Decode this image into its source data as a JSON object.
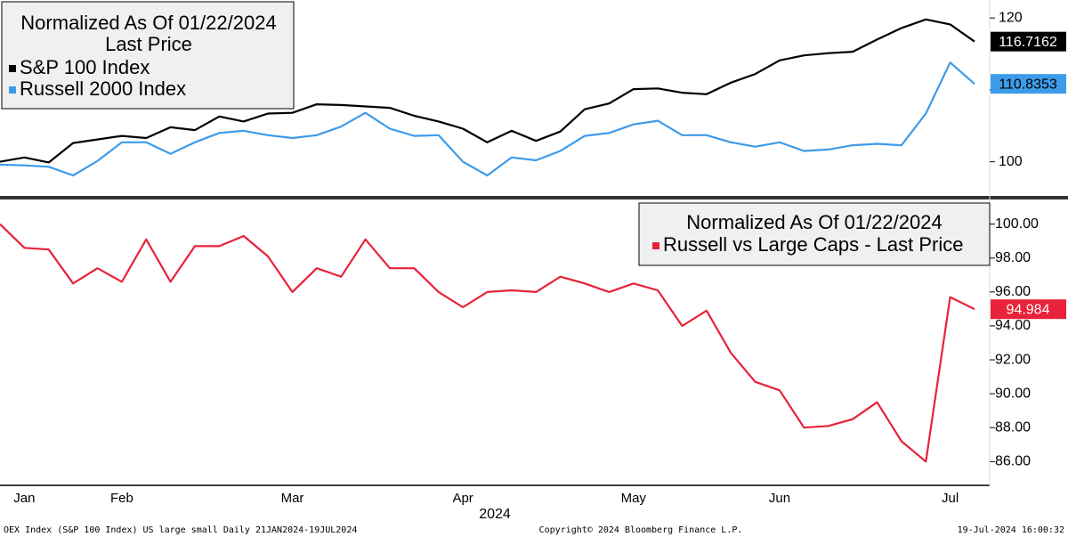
{
  "chart_data": [
    {
      "type": "line",
      "title": "Normalized As Of 01/22/2024",
      "subtitle": "Last Price",
      "ylim": [
        95,
        122.5
      ],
      "yticks": [
        100,
        110,
        120
      ],
      "grid": false,
      "legend": "upper left",
      "series": [
        {
          "name": "S&P 100 Index",
          "color": "#000000",
          "values": [
            100,
            100.6,
            99.9,
            102.6,
            103.1,
            103.6,
            103.3,
            104.8,
            104.4,
            106.3,
            105.6,
            106.7,
            106.8,
            108.0,
            107.9,
            107.7,
            107.5,
            106.4,
            105.6,
            104.6,
            102.7,
            104.3,
            102.9,
            104.2,
            107.3,
            108.1,
            110.1,
            110.2,
            109.6,
            109.4,
            111.0,
            112.2,
            114.1,
            114.8,
            115.1,
            115.3,
            117.0,
            118.6,
            119.8,
            119.1,
            116.7162
          ]
        },
        {
          "name": "Russell 2000 Index",
          "color": "#3d9be9",
          "values": [
            99.6,
            99.5,
            99.3,
            98.1,
            100.1,
            102.7,
            102.7,
            101.1,
            102.7,
            104.0,
            104.3,
            103.7,
            103.3,
            103.7,
            104.9,
            106.8,
            104.6,
            103.6,
            103.7,
            100.0,
            98.1,
            100.6,
            100.2,
            101.5,
            103.6,
            104.0,
            105.2,
            105.7,
            103.7,
            103.7,
            102.7,
            102.1,
            102.7,
            101.5,
            101.7,
            102.3,
            102.5,
            102.3,
            106.7,
            113.8,
            110.8353
          ]
        }
      ]
    },
    {
      "type": "line",
      "title": "Normalized As Of 01/22/2024",
      "xlabel": "2024",
      "categories": [
        null,
        "Jan",
        null,
        null,
        null,
        "Feb",
        null,
        null,
        null,
        null,
        null,
        null,
        "Mar",
        null,
        null,
        null,
        null,
        null,
        null,
        "Apr",
        null,
        null,
        null,
        null,
        null,
        null,
        "May",
        null,
        null,
        null,
        null,
        null,
        "Jun",
        null,
        null,
        null,
        null,
        null,
        null,
        "Jul",
        null
      ],
      "ylim": [
        84.6,
        101.4
      ],
      "yticks": [
        {
          "value": 86,
          "label": "86.00"
        },
        {
          "value": 88,
          "label": "88.00"
        },
        {
          "value": 90,
          "label": "90.00"
        },
        {
          "value": 92,
          "label": "92.00"
        },
        {
          "value": 94,
          "label": "94.00"
        },
        {
          "value": 96,
          "label": "96.00"
        },
        {
          "value": 98,
          "label": "98.00"
        },
        {
          "value": 100,
          "label": "100.00"
        }
      ],
      "grid": false,
      "legend": "upper right",
      "series": [
        {
          "name": "Russell vs Large Caps - Last Price",
          "color": "#e8223a",
          "values": [
            100,
            98.6,
            98.5,
            96.5,
            97.4,
            96.6,
            99.1,
            96.6,
            98.7,
            98.7,
            99.3,
            98.1,
            96.0,
            97.4,
            96.9,
            99.1,
            97.4,
            97.4,
            96.0,
            95.1,
            96.0,
            96.1,
            96.0,
            96.9,
            96.5,
            96.0,
            96.5,
            96.1,
            94.0,
            94.9,
            92.4,
            90.7,
            90.2,
            88.0,
            88.1,
            88.5,
            89.5,
            87.2,
            86.0,
            95.7,
            94.984
          ]
        }
      ]
    }
  ],
  "footer": {
    "left": "OEX Index (S&P 100 Index) US large small  Daily 21JAN2024-19JUL2024",
    "center": "Copyright© 2024 Bloomberg Finance L.P.",
    "right": "19-Jul-2024 16:00:32"
  }
}
